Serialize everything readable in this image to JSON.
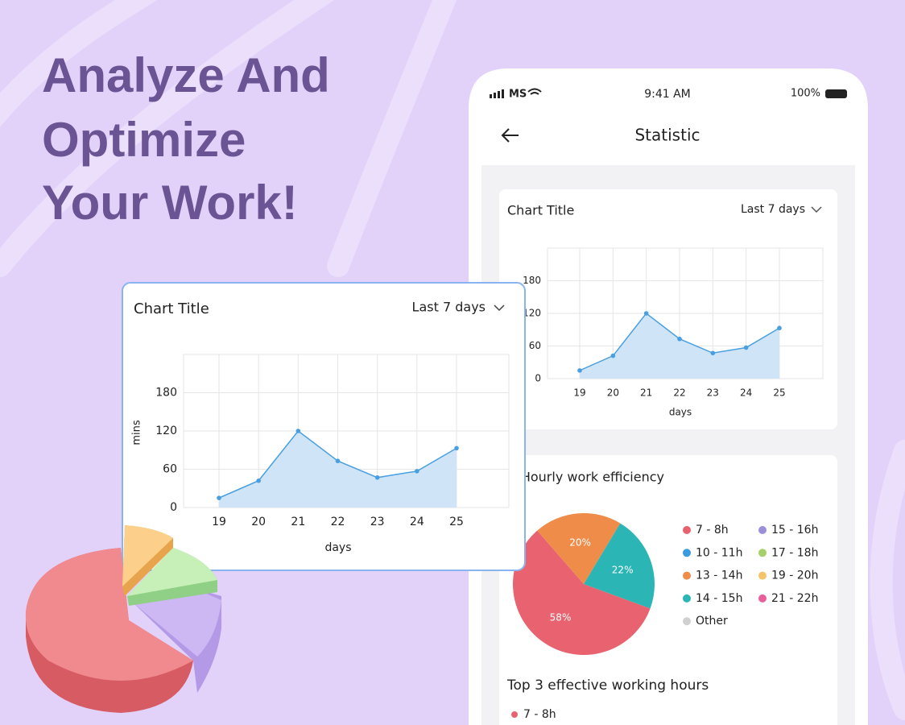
{
  "headline": {
    "lines": [
      "Analyze And",
      "Optimize",
      "Your Work!"
    ]
  },
  "phone": {
    "status": {
      "carrier": "MS",
      "time": "9:41 AM",
      "battery": "100%"
    },
    "title": "Statistic"
  },
  "chart_data": [
    {
      "type": "line",
      "title": "Chart Title",
      "range_label": "Last 7 days",
      "categories": [
        "19",
        "20",
        "21",
        "22",
        "23",
        "24",
        "25"
      ],
      "values": [
        15,
        42,
        120,
        73,
        47,
        57,
        93
      ],
      "color": "#4a9fe0",
      "xlabel": "days",
      "ylabel": "mins",
      "ylim": [
        0,
        240
      ],
      "yticks": [
        0,
        60,
        120,
        180
      ],
      "grid": true
    },
    {
      "type": "line",
      "title": "Chart Title",
      "range_label": "Last 7 days",
      "categories": [
        "19",
        "20",
        "21",
        "22",
        "23",
        "24",
        "25"
      ],
      "values": [
        15,
        42,
        120,
        73,
        47,
        57,
        93
      ],
      "color": "#4a9fe0",
      "xlabel": "days",
      "ylim": [
        0,
        240
      ],
      "yticks": [
        0,
        60,
        120,
        180
      ],
      "grid": true
    },
    {
      "type": "pie",
      "title": "Hourly work efficiency",
      "values": [
        58,
        20,
        22
      ],
      "value_labels": [
        "58%",
        "20%",
        "22%"
      ],
      "colors": [
        "#e8636f",
        "#ef8c4a",
        "#2bb5b5"
      ],
      "legend": [
        {
          "label": "7 - 8h",
          "color": "#e8636f"
        },
        {
          "label": "10 - 11h",
          "color": "#3b9be0"
        },
        {
          "label": "13 - 14h",
          "color": "#ef8c4a"
        },
        {
          "label": "14 - 15h",
          "color": "#2bb5b5"
        },
        {
          "label": "Other",
          "color": "#d0d0d0"
        },
        {
          "label": "15 - 16h",
          "color": "#9b8fd8"
        },
        {
          "label": "17 - 18h",
          "color": "#a6d16a"
        },
        {
          "label": "19 - 20h",
          "color": "#f5c46a"
        },
        {
          "label": "21 - 22h",
          "color": "#e8609a"
        }
      ]
    }
  ],
  "top_hours": {
    "title": "Top 3 effective working hours",
    "items": [
      "7 - 8h"
    ]
  }
}
